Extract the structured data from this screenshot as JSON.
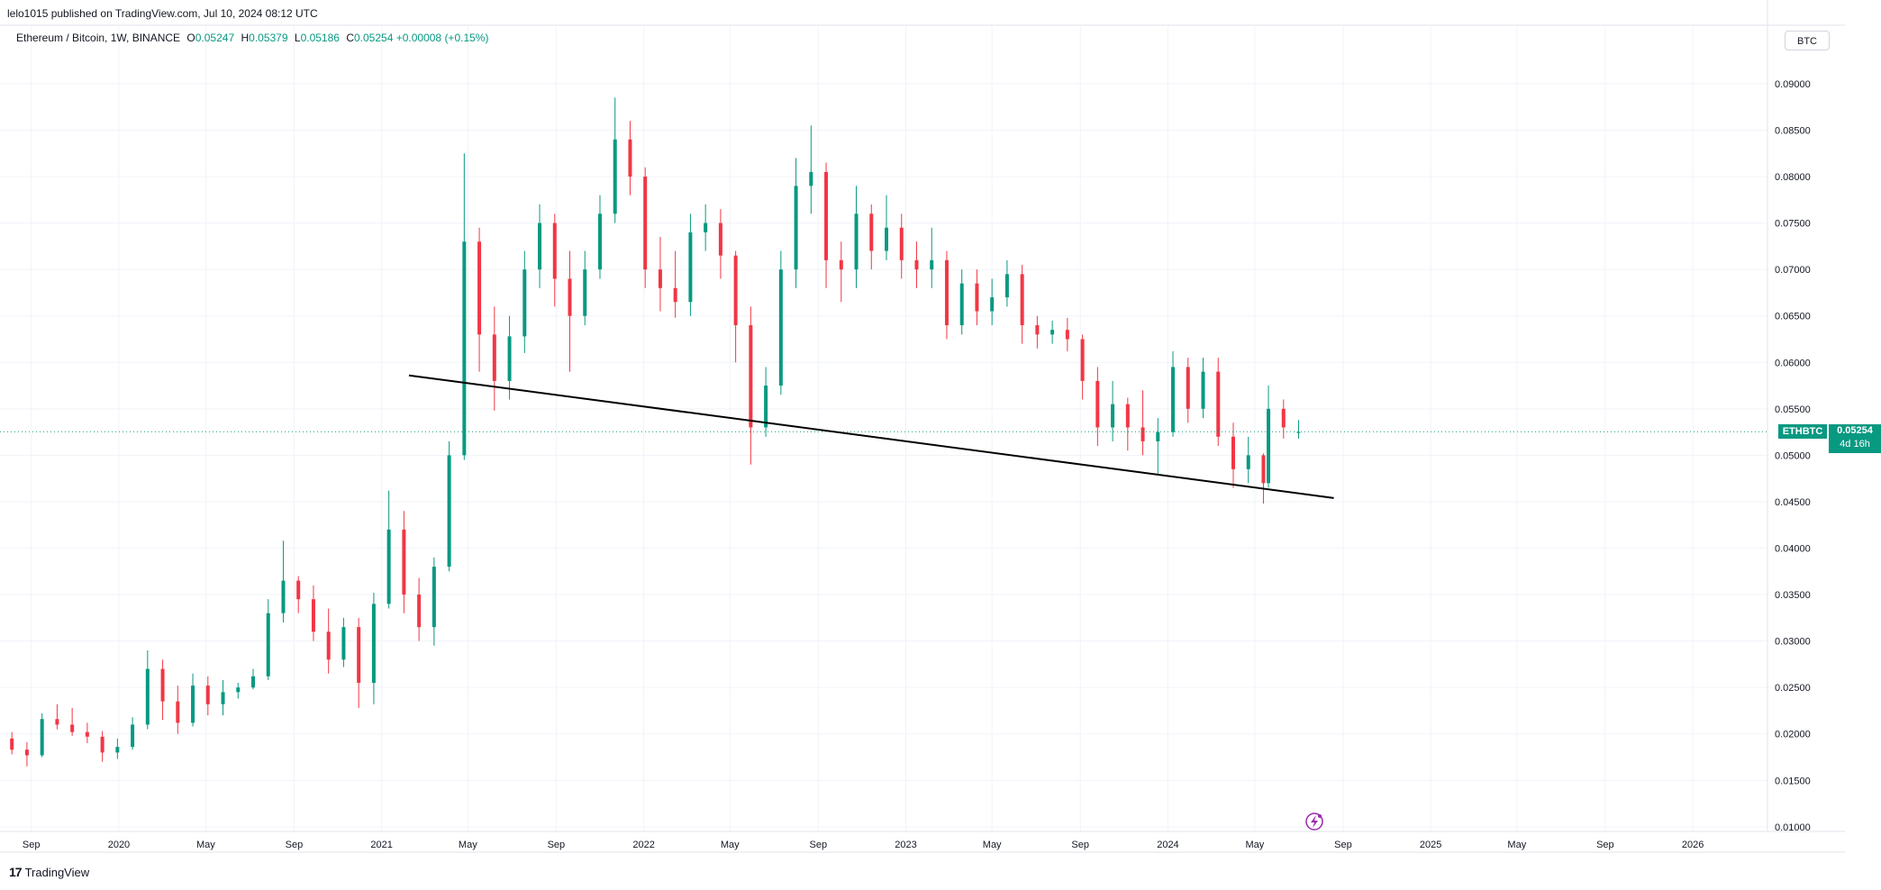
{
  "header": {
    "publisher": "lelo1015 published on TradingView.com, Jul 10, 2024 08:12 UTC",
    "symbol": "Ethereum / Bitcoin, 1W, BINANCE",
    "ohlc": [
      {
        "label": "O",
        "value": "0.05247"
      },
      {
        "label": "H",
        "value": "0.05379"
      },
      {
        "label": "L",
        "value": "0.05186"
      },
      {
        "label": "C",
        "value": "0.05254"
      }
    ],
    "change": "+0.00008 (+0.15%)",
    "currency_button": "BTC"
  },
  "price_tag": {
    "symbol": "ETHBTC",
    "price": "0.05254",
    "countdown": "4d 16h"
  },
  "footer": {
    "brand": "TradingView"
  },
  "colors": {
    "up": "#089981",
    "down": "#f23645",
    "trendline": "#000000",
    "grid": "#f0f3fa",
    "axis_text": "#131722"
  },
  "chart_data": {
    "type": "candlestick",
    "symbol": "ETHBTC",
    "timeframe": "1W",
    "exchange": "BINANCE",
    "y_axis": {
      "side": "right",
      "ylim": [
        0.0095,
        0.093
      ],
      "ticks": [
        "0.01000",
        "0.01500",
        "0.02000",
        "0.02500",
        "0.03000",
        "0.03500",
        "0.04000",
        "0.04500",
        "0.05000",
        "0.05500",
        "0.06000",
        "0.06500",
        "0.07000",
        "0.07500",
        "0.08000",
        "0.08500",
        "0.09000"
      ]
    },
    "x_axis": {
      "start": "2019-08-01",
      "end": "2026-04-15",
      "ticks": [
        {
          "label": "Sep",
          "date": "2019-09-01"
        },
        {
          "label": "2020",
          "date": "2020-01-01"
        },
        {
          "label": "May",
          "date": "2020-05-01"
        },
        {
          "label": "Sep",
          "date": "2020-09-01"
        },
        {
          "label": "2021",
          "date": "2021-01-01"
        },
        {
          "label": "May",
          "date": "2021-05-01"
        },
        {
          "label": "Sep",
          "date": "2021-09-01"
        },
        {
          "label": "2022",
          "date": "2022-01-01"
        },
        {
          "label": "May",
          "date": "2022-05-01"
        },
        {
          "label": "Sep",
          "date": "2022-09-01"
        },
        {
          "label": "2023",
          "date": "2023-01-01"
        },
        {
          "label": "May",
          "date": "2023-05-01"
        },
        {
          "label": "Sep",
          "date": "2023-09-01"
        },
        {
          "label": "2024",
          "date": "2024-01-01"
        },
        {
          "label": "May",
          "date": "2024-05-01"
        },
        {
          "label": "Sep",
          "date": "2024-09-01"
        },
        {
          "label": "2025",
          "date": "2025-01-01"
        },
        {
          "label": "May",
          "date": "2025-05-01"
        },
        {
          "label": "Sep",
          "date": "2025-09-01"
        },
        {
          "label": "2026",
          "date": "2026-01-01"
        }
      ]
    },
    "grid": true,
    "last_price": 0.05254,
    "trendline": [
      {
        "date": "2021-02-08",
        "price": 0.0586
      },
      {
        "date": "2024-08-19",
        "price": 0.0454
      }
    ],
    "candles": [
      {
        "date": "2019-08-05",
        "o": 0.0195,
        "h": 0.0202,
        "l": 0.0178,
        "c": 0.0183
      },
      {
        "date": "2019-08-26",
        "o": 0.0183,
        "h": 0.0191,
        "l": 0.0165,
        "c": 0.0177
      },
      {
        "date": "2019-09-16",
        "o": 0.0177,
        "h": 0.0222,
        "l": 0.0175,
        "c": 0.0216
      },
      {
        "date": "2019-10-07",
        "o": 0.0216,
        "h": 0.0232,
        "l": 0.0205,
        "c": 0.021
      },
      {
        "date": "2019-10-28",
        "o": 0.021,
        "h": 0.0228,
        "l": 0.0198,
        "c": 0.0202
      },
      {
        "date": "2019-11-18",
        "o": 0.0202,
        "h": 0.0212,
        "l": 0.019,
        "c": 0.0197
      },
      {
        "date": "2019-12-09",
        "o": 0.0197,
        "h": 0.0203,
        "l": 0.017,
        "c": 0.018
      },
      {
        "date": "2019-12-30",
        "o": 0.018,
        "h": 0.0195,
        "l": 0.0173,
        "c": 0.0186
      },
      {
        "date": "2020-01-20",
        "o": 0.0186,
        "h": 0.0218,
        "l": 0.0183,
        "c": 0.021
      },
      {
        "date": "2020-02-10",
        "o": 0.021,
        "h": 0.029,
        "l": 0.0205,
        "c": 0.027
      },
      {
        "date": "2020-03-02",
        "o": 0.027,
        "h": 0.028,
        "l": 0.0215,
        "c": 0.0235
      },
      {
        "date": "2020-03-23",
        "o": 0.0235,
        "h": 0.0252,
        "l": 0.02,
        "c": 0.0212
      },
      {
        "date": "2020-04-13",
        "o": 0.0212,
        "h": 0.0265,
        "l": 0.0208,
        "c": 0.0252
      },
      {
        "date": "2020-05-04",
        "o": 0.0252,
        "h": 0.0262,
        "l": 0.022,
        "c": 0.0232
      },
      {
        "date": "2020-05-25",
        "o": 0.0232,
        "h": 0.0258,
        "l": 0.022,
        "c": 0.0245
      },
      {
        "date": "2020-06-15",
        "o": 0.0245,
        "h": 0.0255,
        "l": 0.0238,
        "c": 0.025
      },
      {
        "date": "2020-07-06",
        "o": 0.025,
        "h": 0.027,
        "l": 0.0248,
        "c": 0.0262
      },
      {
        "date": "2020-07-27",
        "o": 0.0262,
        "h": 0.0345,
        "l": 0.0258,
        "c": 0.033
      },
      {
        "date": "2020-08-17",
        "o": 0.033,
        "h": 0.0408,
        "l": 0.032,
        "c": 0.0365
      },
      {
        "date": "2020-09-07",
        "o": 0.0365,
        "h": 0.037,
        "l": 0.033,
        "c": 0.0345
      },
      {
        "date": "2020-09-28",
        "o": 0.0345,
        "h": 0.036,
        "l": 0.03,
        "c": 0.031
      },
      {
        "date": "2020-10-19",
        "o": 0.031,
        "h": 0.0335,
        "l": 0.0265,
        "c": 0.028
      },
      {
        "date": "2020-11-09",
        "o": 0.028,
        "h": 0.0325,
        "l": 0.0272,
        "c": 0.0315
      },
      {
        "date": "2020-11-30",
        "o": 0.0315,
        "h": 0.0325,
        "l": 0.0228,
        "c": 0.0255
      },
      {
        "date": "2020-12-21",
        "o": 0.0255,
        "h": 0.0352,
        "l": 0.0232,
        "c": 0.034
      },
      {
        "date": "2021-01-11",
        "o": 0.034,
        "h": 0.0462,
        "l": 0.0335,
        "c": 0.042
      },
      {
        "date": "2021-02-01",
        "o": 0.042,
        "h": 0.044,
        "l": 0.033,
        "c": 0.035
      },
      {
        "date": "2021-02-22",
        "o": 0.035,
        "h": 0.0368,
        "l": 0.03,
        "c": 0.0315
      },
      {
        "date": "2021-03-15",
        "o": 0.0315,
        "h": 0.039,
        "l": 0.0295,
        "c": 0.038
      },
      {
        "date": "2021-04-05",
        "o": 0.038,
        "h": 0.0515,
        "l": 0.0375,
        "c": 0.05
      },
      {
        "date": "2021-04-26",
        "o": 0.05,
        "h": 0.0825,
        "l": 0.0495,
        "c": 0.073
      },
      {
        "date": "2021-05-17",
        "o": 0.073,
        "h": 0.0745,
        "l": 0.059,
        "c": 0.063
      },
      {
        "date": "2021-06-07",
        "o": 0.063,
        "h": 0.066,
        "l": 0.0548,
        "c": 0.058
      },
      {
        "date": "2021-06-28",
        "o": 0.058,
        "h": 0.065,
        "l": 0.056,
        "c": 0.0628
      },
      {
        "date": "2021-07-19",
        "o": 0.0628,
        "h": 0.072,
        "l": 0.061,
        "c": 0.07
      },
      {
        "date": "2021-08-09",
        "o": 0.07,
        "h": 0.077,
        "l": 0.068,
        "c": 0.075
      },
      {
        "date": "2021-08-30",
        "o": 0.075,
        "h": 0.076,
        "l": 0.066,
        "c": 0.069
      },
      {
        "date": "2021-09-20",
        "o": 0.069,
        "h": 0.072,
        "l": 0.059,
        "c": 0.065
      },
      {
        "date": "2021-10-11",
        "o": 0.065,
        "h": 0.072,
        "l": 0.064,
        "c": 0.07
      },
      {
        "date": "2021-11-01",
        "o": 0.07,
        "h": 0.078,
        "l": 0.069,
        "c": 0.076
      },
      {
        "date": "2021-11-22",
        "o": 0.076,
        "h": 0.0885,
        "l": 0.075,
        "c": 0.084
      },
      {
        "date": "2021-12-13",
        "o": 0.084,
        "h": 0.086,
        "l": 0.078,
        "c": 0.08
      },
      {
        "date": "2022-01-03",
        "o": 0.08,
        "h": 0.081,
        "l": 0.068,
        "c": 0.07
      },
      {
        "date": "2022-01-24",
        "o": 0.07,
        "h": 0.0735,
        "l": 0.0655,
        "c": 0.068
      },
      {
        "date": "2022-02-14",
        "o": 0.068,
        "h": 0.072,
        "l": 0.0648,
        "c": 0.0665
      },
      {
        "date": "2022-03-07",
        "o": 0.0665,
        "h": 0.076,
        "l": 0.065,
        "c": 0.074
      },
      {
        "date": "2022-03-28",
        "o": 0.074,
        "h": 0.077,
        "l": 0.072,
        "c": 0.075
      },
      {
        "date": "2022-04-18",
        "o": 0.075,
        "h": 0.0765,
        "l": 0.069,
        "c": 0.0715
      },
      {
        "date": "2022-05-09",
        "o": 0.0715,
        "h": 0.072,
        "l": 0.06,
        "c": 0.064
      },
      {
        "date": "2022-05-30",
        "o": 0.064,
        "h": 0.066,
        "l": 0.049,
        "c": 0.053
      },
      {
        "date": "2022-06-20",
        "o": 0.053,
        "h": 0.0595,
        "l": 0.052,
        "c": 0.0575
      },
      {
        "date": "2022-07-11",
        "o": 0.0575,
        "h": 0.072,
        "l": 0.0565,
        "c": 0.07
      },
      {
        "date": "2022-08-01",
        "o": 0.07,
        "h": 0.082,
        "l": 0.068,
        "c": 0.079
      },
      {
        "date": "2022-08-22",
        "o": 0.079,
        "h": 0.0855,
        "l": 0.076,
        "c": 0.0805
      },
      {
        "date": "2022-09-12",
        "o": 0.0805,
        "h": 0.0815,
        "l": 0.068,
        "c": 0.071
      },
      {
        "date": "2022-10-03",
        "o": 0.071,
        "h": 0.073,
        "l": 0.0665,
        "c": 0.07
      },
      {
        "date": "2022-10-24",
        "o": 0.07,
        "h": 0.079,
        "l": 0.068,
        "c": 0.076
      },
      {
        "date": "2022-11-14",
        "o": 0.076,
        "h": 0.077,
        "l": 0.07,
        "c": 0.072
      },
      {
        "date": "2022-12-05",
        "o": 0.072,
        "h": 0.078,
        "l": 0.071,
        "c": 0.0745
      },
      {
        "date": "2022-12-26",
        "o": 0.0745,
        "h": 0.076,
        "l": 0.069,
        "c": 0.071
      },
      {
        "date": "2023-01-16",
        "o": 0.071,
        "h": 0.073,
        "l": 0.068,
        "c": 0.07
      },
      {
        "date": "2023-02-06",
        "o": 0.07,
        "h": 0.0745,
        "l": 0.068,
        "c": 0.071
      },
      {
        "date": "2023-02-27",
        "o": 0.071,
        "h": 0.072,
        "l": 0.0625,
        "c": 0.064
      },
      {
        "date": "2023-03-20",
        "o": 0.064,
        "h": 0.07,
        "l": 0.063,
        "c": 0.0685
      },
      {
        "date": "2023-04-10",
        "o": 0.0685,
        "h": 0.07,
        "l": 0.064,
        "c": 0.0655
      },
      {
        "date": "2023-05-01",
        "o": 0.0655,
        "h": 0.069,
        "l": 0.064,
        "c": 0.067
      },
      {
        "date": "2023-05-22",
        "o": 0.067,
        "h": 0.071,
        "l": 0.066,
        "c": 0.0695
      },
      {
        "date": "2023-06-12",
        "o": 0.0695,
        "h": 0.0705,
        "l": 0.062,
        "c": 0.064
      },
      {
        "date": "2023-07-03",
        "o": 0.064,
        "h": 0.065,
        "l": 0.0615,
        "c": 0.063
      },
      {
        "date": "2023-07-24",
        "o": 0.063,
        "h": 0.0645,
        "l": 0.062,
        "c": 0.0635
      },
      {
        "date": "2023-08-14",
        "o": 0.0635,
        "h": 0.0648,
        "l": 0.0612,
        "c": 0.0625
      },
      {
        "date": "2023-09-04",
        "o": 0.0625,
        "h": 0.063,
        "l": 0.056,
        "c": 0.058
      },
      {
        "date": "2023-09-25",
        "o": 0.058,
        "h": 0.0595,
        "l": 0.051,
        "c": 0.053
      },
      {
        "date": "2023-10-16",
        "o": 0.053,
        "h": 0.058,
        "l": 0.0515,
        "c": 0.0555
      },
      {
        "date": "2023-11-06",
        "o": 0.0555,
        "h": 0.0562,
        "l": 0.0505,
        "c": 0.053
      },
      {
        "date": "2023-11-27",
        "o": 0.053,
        "h": 0.057,
        "l": 0.05,
        "c": 0.0515
      },
      {
        "date": "2023-12-18",
        "o": 0.0515,
        "h": 0.054,
        "l": 0.048,
        "c": 0.0525
      },
      {
        "date": "2024-01-08",
        "o": 0.0525,
        "h": 0.0612,
        "l": 0.052,
        "c": 0.0595
      },
      {
        "date": "2024-01-29",
        "o": 0.0595,
        "h": 0.0605,
        "l": 0.0535,
        "c": 0.055
      },
      {
        "date": "2024-02-19",
        "o": 0.055,
        "h": 0.0605,
        "l": 0.054,
        "c": 0.059
      },
      {
        "date": "2024-03-11",
        "o": 0.059,
        "h": 0.0605,
        "l": 0.051,
        "c": 0.052
      },
      {
        "date": "2024-04-01",
        "o": 0.052,
        "h": 0.0535,
        "l": 0.0465,
        "c": 0.0485
      },
      {
        "date": "2024-04-22",
        "o": 0.0485,
        "h": 0.052,
        "l": 0.047,
        "c": 0.05
      },
      {
        "date": "2024-05-13",
        "o": 0.05,
        "h": 0.0502,
        "l": 0.0448,
        "c": 0.047
      },
      {
        "date": "2024-05-20",
        "o": 0.047,
        "h": 0.0575,
        "l": 0.0465,
        "c": 0.055
      },
      {
        "date": "2024-06-10",
        "o": 0.055,
        "h": 0.056,
        "l": 0.0518,
        "c": 0.053
      },
      {
        "date": "2024-07-01",
        "o": 0.0524,
        "h": 0.0538,
        "l": 0.0518,
        "c": 0.0525
      }
    ]
  }
}
